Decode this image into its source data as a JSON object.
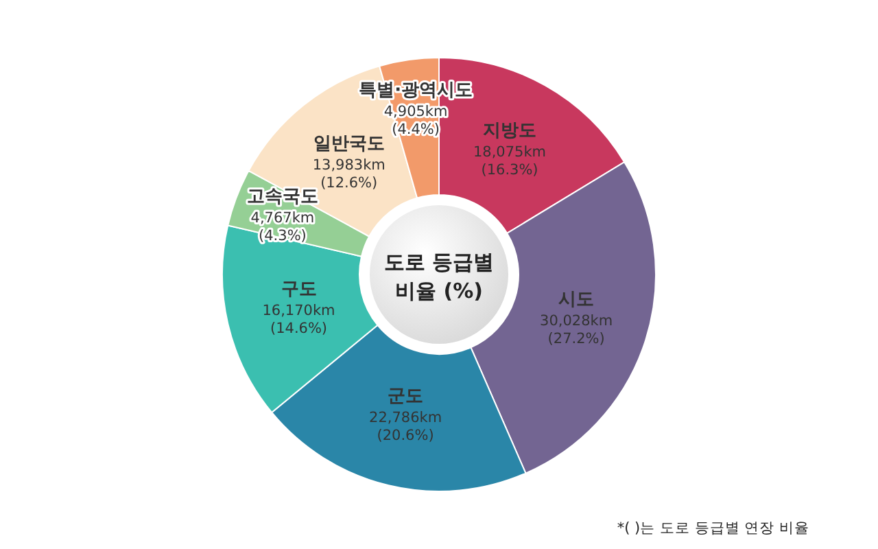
{
  "chart_data": {
    "type": "donut",
    "title": "도로 등급별 비율 (%)",
    "categories": [
      "지방도",
      "시도",
      "군도",
      "구도",
      "고속국도",
      "일반국도",
      "특별·광역시도"
    ],
    "values": [
      18075,
      30028,
      22786,
      16170,
      4767,
      13983,
      4905
    ],
    "colors": [
      "#c8385e",
      "#736592",
      "#2a86a8",
      "#3bbfb0",
      "#95cf95",
      "#fbe3c6",
      "#f29a6a"
    ],
    "value_labels": [
      "18,075km\n(16.3%)",
      "30,028km\n(27.2%)",
      "22,786km\n(20.6%)",
      "16,170km\n(14.6%)",
      "4,767km\n(4.3%)",
      "13,983km\n(12.6%)",
      "4,905km\n(4.4%)"
    ],
    "annotations": [
      "*( )는 도로 등급별 연장 비율"
    ]
  }
}
